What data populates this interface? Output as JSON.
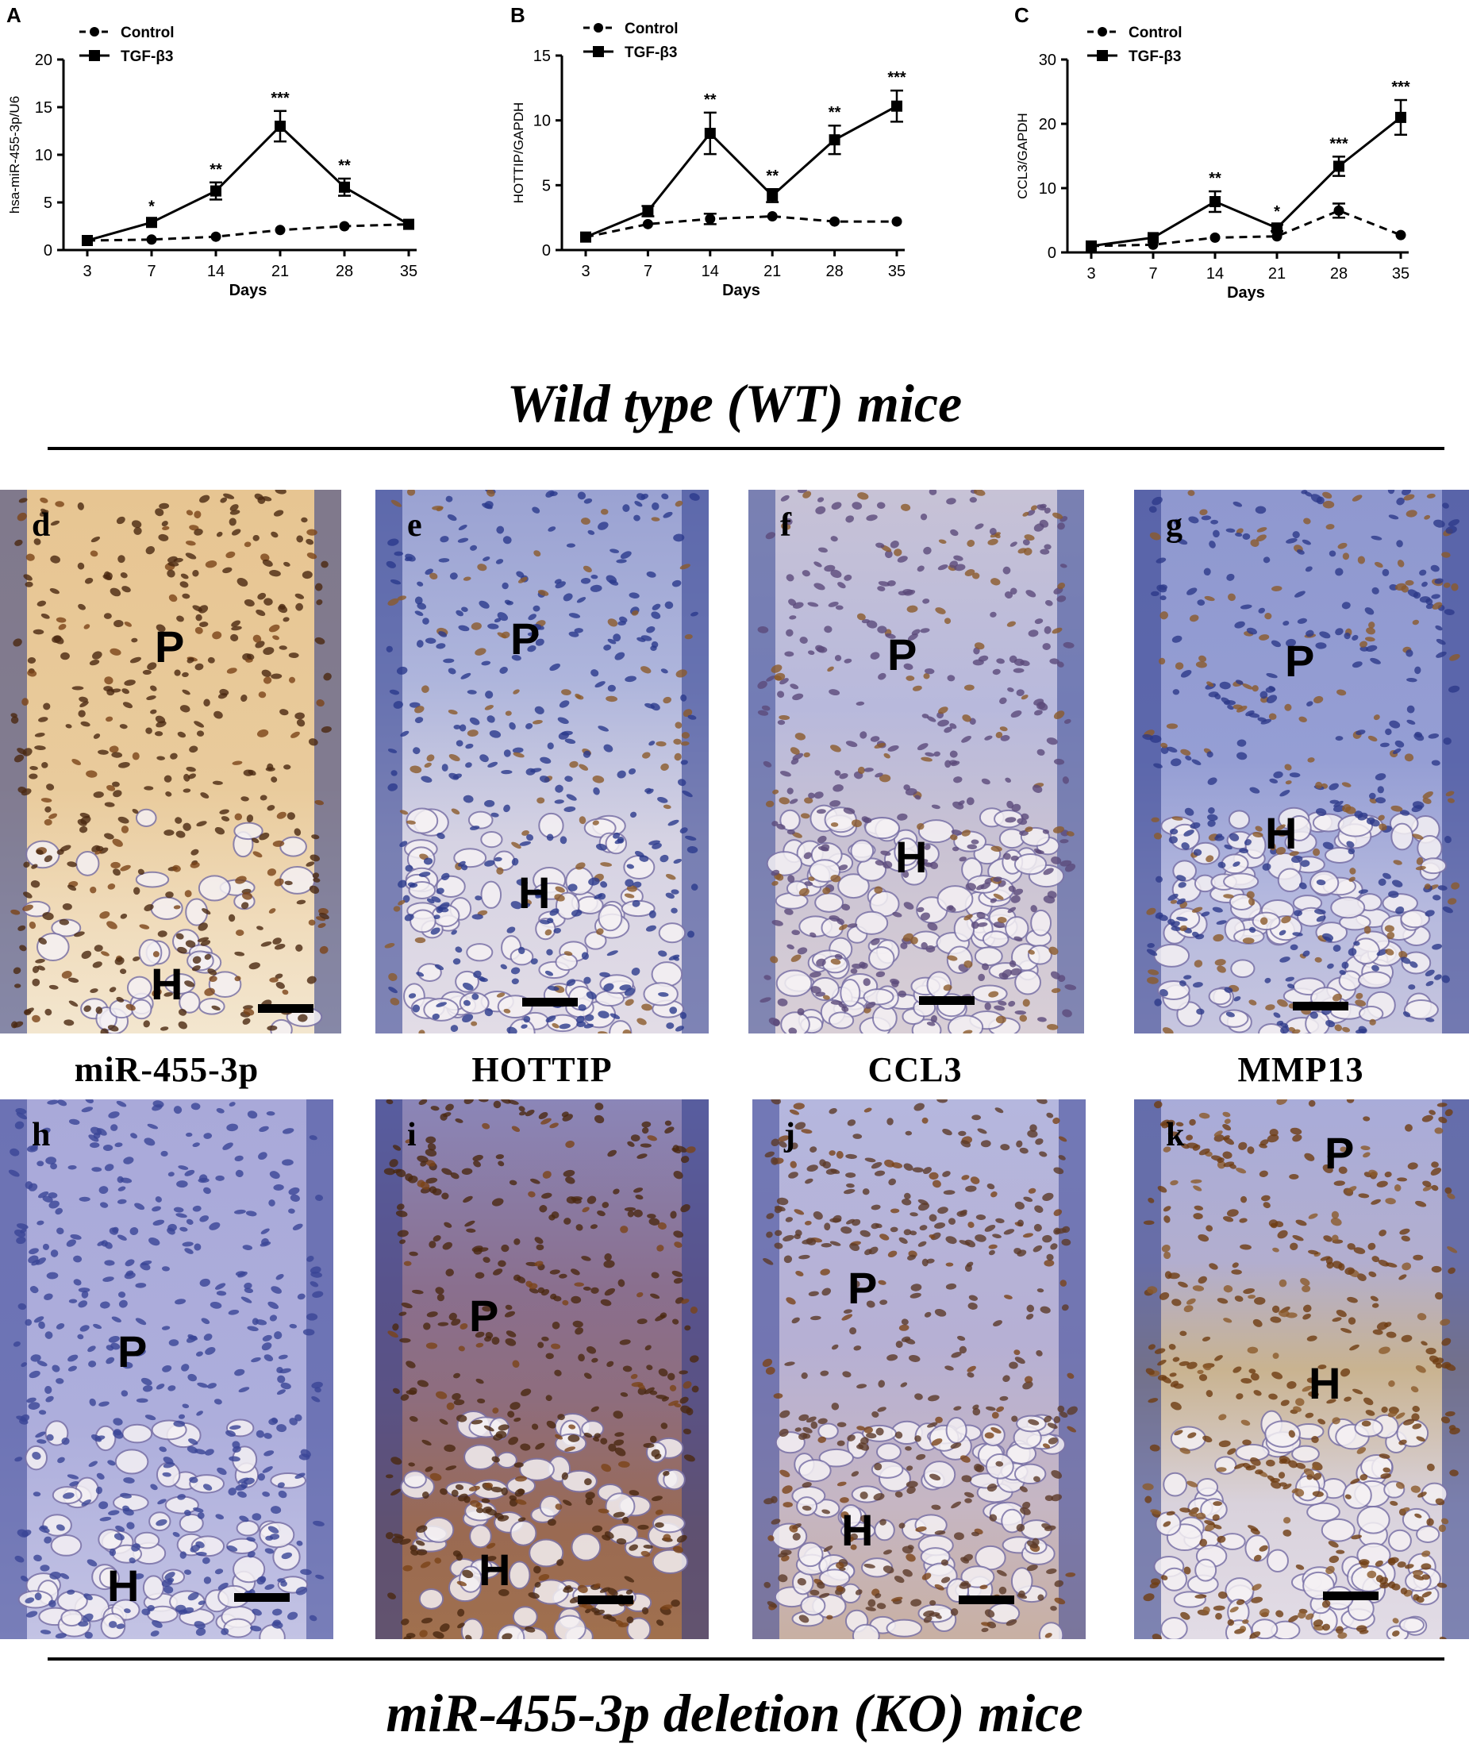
{
  "chart_data": [
    {
      "type": "line",
      "panel_label": "A",
      "ylabel": "hsa-miR-455-3p/U6",
      "xlabel": "Days",
      "categories": [
        "3",
        "7",
        "14",
        "21",
        "28",
        "35"
      ],
      "ylim": [
        0,
        20
      ],
      "yticks": [
        "0",
        "5",
        "10",
        "15",
        "20"
      ],
      "series": [
        {
          "name": "Control",
          "values": [
            1.0,
            1.1,
            1.4,
            2.1,
            2.5,
            2.7
          ],
          "err": [
            0.1,
            0.1,
            0.1,
            0.15,
            0.15,
            0.15
          ]
        },
        {
          "name": "TGF-β3",
          "values": [
            1.0,
            2.9,
            6.2,
            13.0,
            6.6,
            2.7
          ],
          "err": [
            0.1,
            0.3,
            0.9,
            1.6,
            0.9,
            0.2
          ]
        }
      ],
      "annotations": [
        "",
        "*",
        "**",
        "***",
        "**",
        ""
      ],
      "legend": "top-left"
    },
    {
      "type": "line",
      "panel_label": "B",
      "ylabel": "HOTTIP/GAPDH",
      "xlabel": "Days",
      "categories": [
        "3",
        "7",
        "14",
        "21",
        "28",
        "35"
      ],
      "ylim": [
        0,
        15
      ],
      "yticks": [
        "0",
        "5",
        "10",
        "15"
      ],
      "series": [
        {
          "name": "Control",
          "values": [
            1.0,
            2.0,
            2.4,
            2.6,
            2.2,
            2.2
          ],
          "err": [
            0.1,
            0.2,
            0.4,
            0.15,
            0.1,
            0.1
          ]
        },
        {
          "name": "TGF-β3",
          "values": [
            1.0,
            3.0,
            9.0,
            4.2,
            8.5,
            11.1
          ],
          "err": [
            0.1,
            0.4,
            1.6,
            0.5,
            1.1,
            1.2
          ]
        }
      ],
      "annotations": [
        "",
        "",
        "**",
        "**",
        "**",
        "***"
      ],
      "legend": "top-left"
    },
    {
      "type": "line",
      "panel_label": "C",
      "ylabel": "CCL3/GAPDH",
      "xlabel": "Days",
      "categories": [
        "3",
        "7",
        "14",
        "21",
        "28",
        "35"
      ],
      "ylim": [
        0,
        30
      ],
      "yticks": [
        "0",
        "10",
        "20",
        "30"
      ],
      "series": [
        {
          "name": "Control",
          "values": [
            1.0,
            1.2,
            2.3,
            2.5,
            6.5,
            2.7
          ],
          "err": [
            0.1,
            0.1,
            0.2,
            0.2,
            1.1,
            0.2
          ]
        },
        {
          "name": "TGF-β3",
          "values": [
            1.0,
            2.3,
            7.9,
            3.8,
            13.4,
            21.0
          ],
          "err": [
            0.1,
            0.3,
            1.6,
            0.5,
            1.5,
            2.7
          ]
        }
      ],
      "annotations": [
        "",
        "",
        "**",
        "*",
        "***",
        "***"
      ],
      "legend": "top-left"
    }
  ],
  "wt_title": "Wild type (WT) mice",
  "ko_title": "miR-455-3p deletion (KO) mice",
  "captions": [
    "miR-455-3p",
    "HOTTIP",
    "CCL3",
    "MMP13"
  ],
  "panels": {
    "d": {
      "letter": "d",
      "zone1": "P",
      "zone2": "H"
    },
    "e": {
      "letter": "e",
      "zone1": "P",
      "zone2": "H"
    },
    "f": {
      "letter": "f",
      "zone1": "P",
      "zone2": "H"
    },
    "g": {
      "letter": "g",
      "zone1": "P",
      "zone2": "H"
    },
    "h": {
      "letter": "h",
      "zone1": "P",
      "zone2": "H"
    },
    "i": {
      "letter": "i",
      "zone1": "P",
      "zone2": "H"
    },
    "j": {
      "letter": "j",
      "zone1": "P",
      "zone2": "H"
    },
    "k": {
      "letter": "k",
      "zone1": "P",
      "zone2": "H"
    }
  },
  "colors": {
    "stain_brown": "#8b5a2b",
    "counterstain_blue": "#6f77b8",
    "cartilage_pale": "#d9d3e6",
    "cartilage_tan": "#e9cf9c"
  }
}
